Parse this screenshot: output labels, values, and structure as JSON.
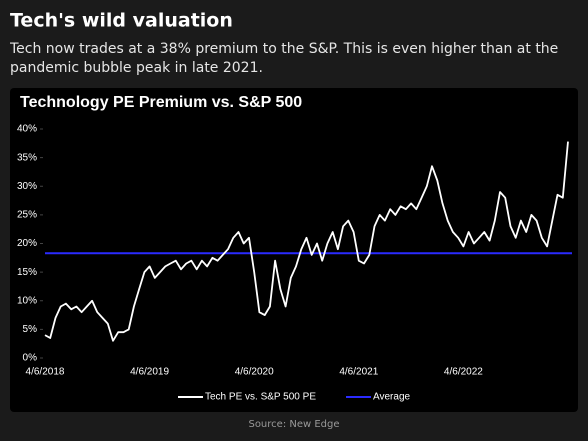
{
  "header": {
    "title": "Tech's wild valuation",
    "subtitle": "Tech now trades at a 38% premium to the S&P. This is even higher than at the pandemic bubble peak in late 2021."
  },
  "source": "Source: New Edge",
  "chart_data": {
    "type": "line",
    "title": "Technology PE Premium vs. S&P 500",
    "categories": [
      "4/6/2018",
      null,
      null,
      null,
      null,
      null,
      null,
      null,
      null,
      null,
      null,
      null,
      null,
      null,
      null,
      null,
      null,
      null,
      null,
      null,
      "4/6/2019",
      null,
      null,
      null,
      null,
      null,
      null,
      null,
      null,
      null,
      null,
      null,
      null,
      null,
      null,
      null,
      null,
      null,
      null,
      null,
      "4/6/2020",
      null,
      null,
      null,
      null,
      null,
      null,
      null,
      null,
      null,
      null,
      null,
      null,
      null,
      null,
      null,
      null,
      null,
      null,
      null,
      "4/6/2021",
      null,
      null,
      null,
      null,
      null,
      null,
      null,
      null,
      null,
      null,
      null,
      null,
      null,
      null,
      null,
      null,
      null,
      null,
      null,
      "4/6/2022",
      null,
      null,
      null,
      null,
      null,
      null,
      null,
      null,
      null,
      null,
      null,
      null,
      null,
      null,
      null,
      null,
      null,
      null,
      null,
      null
    ],
    "series": [
      {
        "name": "Tech PE vs. S&P 500 PE",
        "color": "#ffffff",
        "values": [
          4,
          3.5,
          7,
          9,
          9.5,
          8.5,
          9,
          8,
          9,
          10,
          8,
          7,
          6,
          3,
          4.5,
          4.5,
          5,
          9,
          12,
          15,
          16,
          14,
          15,
          16,
          16.5,
          17,
          15.5,
          16.5,
          17,
          15.5,
          17,
          16,
          17.5,
          17,
          18,
          19,
          21,
          22,
          20,
          21,
          15,
          8,
          7.5,
          9,
          17,
          12,
          9,
          14,
          16,
          19,
          21,
          18,
          20,
          17,
          20,
          22,
          19,
          23,
          24,
          22,
          17,
          16.5,
          18,
          23,
          25,
          24,
          26,
          25,
          26.5,
          26,
          27,
          26,
          28,
          30,
          33.5,
          31,
          27,
          24,
          22,
          21,
          19.5,
          22,
          20,
          21,
          22,
          20.5,
          24,
          29,
          28,
          23,
          21,
          24,
          22,
          25,
          24,
          21,
          19.5,
          24,
          28.5,
          28,
          37.8
        ]
      }
    ],
    "average": {
      "name": "Average",
      "color": "#2b2bff",
      "value": 18.3
    },
    "ylim": [
      0,
      40
    ],
    "yticks": [
      {
        "value": 0,
        "label": "0%"
      },
      {
        "value": 5,
        "label": "5%"
      },
      {
        "value": 10,
        "label": "10%"
      },
      {
        "value": 15,
        "label": "15%"
      },
      {
        "value": 20,
        "label": "20%"
      },
      {
        "value": 25,
        "label": "25%"
      },
      {
        "value": 30,
        "label": "30%"
      },
      {
        "value": 35,
        "label": "35%"
      },
      {
        "value": 40,
        "label": "40%"
      }
    ],
    "grid": false
  }
}
